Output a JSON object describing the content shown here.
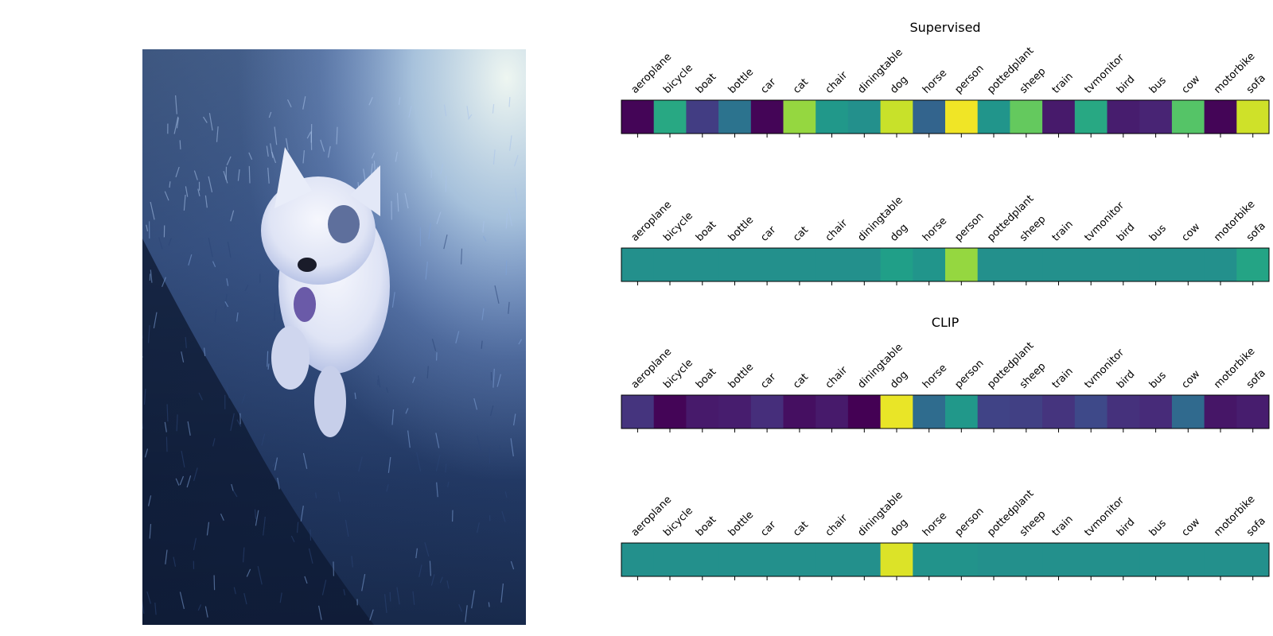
{
  "figure": {
    "photo": {
      "subject": "dog-photo",
      "colors": {
        "sky": "#e2efee",
        "haze": "#9fbfe3",
        "grass": "#4a6fae",
        "dark": "#101c34",
        "fur": "#eef1fb",
        "patch": "#5e6f9c",
        "tongue": "#6a5aa8"
      }
    },
    "colormap": "viridis",
    "chart_data": [
      {
        "type": "heatmap",
        "title": "Supervised",
        "categories": [
          "aeroplane",
          "bicycle",
          "boat",
          "bottle",
          "car",
          "cat",
          "chair",
          "diningtable",
          "dog",
          "horse",
          "person",
          "pottedplant",
          "sheep",
          "train",
          "tvmonitor",
          "bird",
          "bus",
          "cow",
          "motorbike",
          "sofa"
        ],
        "values": [
          0.01,
          0.6,
          0.18,
          0.38,
          0.01,
          0.84,
          0.53,
          0.5,
          0.92,
          0.32,
          0.98,
          0.52,
          0.76,
          0.07,
          0.6,
          0.08,
          0.1,
          0.73,
          0.01,
          0.93
        ]
      },
      {
        "type": "heatmap",
        "title": "",
        "categories": [
          "aeroplane",
          "bicycle",
          "boat",
          "bottle",
          "car",
          "cat",
          "chair",
          "diningtable",
          "dog",
          "horse",
          "person",
          "pottedplant",
          "sheep",
          "train",
          "tvmonitor",
          "bird",
          "bus",
          "cow",
          "motorbike",
          "sofa"
        ],
        "values": [
          0.5,
          0.5,
          0.5,
          0.5,
          0.5,
          0.5,
          0.5,
          0.5,
          0.56,
          0.52,
          0.84,
          0.5,
          0.5,
          0.5,
          0.5,
          0.5,
          0.5,
          0.5,
          0.5,
          0.58
        ]
      },
      {
        "type": "heatmap",
        "title": "CLIP",
        "categories": [
          "aeroplane",
          "bicycle",
          "boat",
          "bottle",
          "car",
          "cat",
          "chair",
          "diningtable",
          "dog",
          "horse",
          "person",
          "pottedplant",
          "sheep",
          "train",
          "tvmonitor",
          "bird",
          "bus",
          "cow",
          "motorbike",
          "sofa"
        ],
        "values": [
          0.15,
          0.01,
          0.07,
          0.08,
          0.13,
          0.04,
          0.07,
          0.0,
          0.97,
          0.35,
          0.53,
          0.2,
          0.19,
          0.15,
          0.22,
          0.14,
          0.12,
          0.34,
          0.06,
          0.08
        ]
      },
      {
        "type": "heatmap",
        "title": "",
        "categories": [
          "aeroplane",
          "bicycle",
          "boat",
          "bottle",
          "car",
          "cat",
          "chair",
          "diningtable",
          "dog",
          "horse",
          "person",
          "pottedplant",
          "sheep",
          "train",
          "tvmonitor",
          "bird",
          "bus",
          "cow",
          "motorbike",
          "sofa"
        ],
        "values": [
          0.5,
          0.5,
          0.5,
          0.5,
          0.5,
          0.5,
          0.5,
          0.5,
          0.95,
          0.51,
          0.51,
          0.5,
          0.5,
          0.5,
          0.5,
          0.5,
          0.5,
          0.5,
          0.5,
          0.5
        ]
      }
    ]
  }
}
